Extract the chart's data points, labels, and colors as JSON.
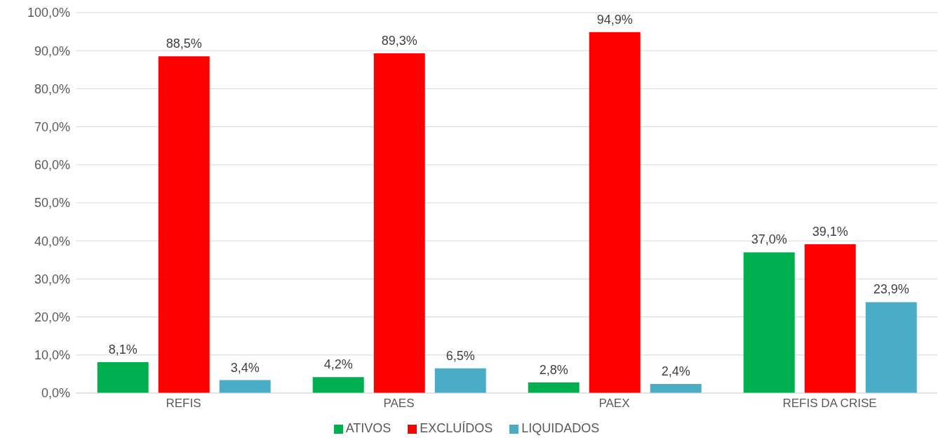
{
  "chart_data": {
    "type": "bar",
    "categories": [
      "REFIS",
      "PAES",
      "PAEX",
      "REFIS DA CRISE"
    ],
    "series": [
      {
        "name": "ATIVOS",
        "color": "#00b050",
        "values": [
          8.1,
          4.2,
          2.8,
          37.0
        ],
        "value_labels": [
          "8,1%",
          "4,2%",
          "2,8%",
          "37,0%"
        ]
      },
      {
        "name": "EXCLUÍDOS",
        "color": "#ff0000",
        "values": [
          88.5,
          89.3,
          94.9,
          39.1
        ],
        "value_labels": [
          "88,5%",
          "89,3%",
          "94,9%",
          "39,1%"
        ]
      },
      {
        "name": "LIQUIDADOS",
        "color": "#4bacc6",
        "values": [
          3.4,
          6.5,
          2.4,
          23.9
        ],
        "value_labels": [
          "3,4%",
          "6,5%",
          "2,4%",
          "23,9%"
        ]
      }
    ],
    "ylim": [
      0,
      100
    ],
    "yticks": [
      {
        "value": 0,
        "label": "0,0%"
      },
      {
        "value": 10,
        "label": "10,0%"
      },
      {
        "value": 20,
        "label": "20,0%"
      },
      {
        "value": 30,
        "label": "30,0%"
      },
      {
        "value": 40,
        "label": "40,0%"
      },
      {
        "value": 50,
        "label": "50,0%"
      },
      {
        "value": 60,
        "label": "60,0%"
      },
      {
        "value": 70,
        "label": "70,0%"
      },
      {
        "value": 80,
        "label": "80,0%"
      },
      {
        "value": 90,
        "label": "90,0%"
      },
      {
        "value": 100,
        "label": "100,0%"
      }
    ],
    "grid": "y",
    "legend": "bottom"
  }
}
